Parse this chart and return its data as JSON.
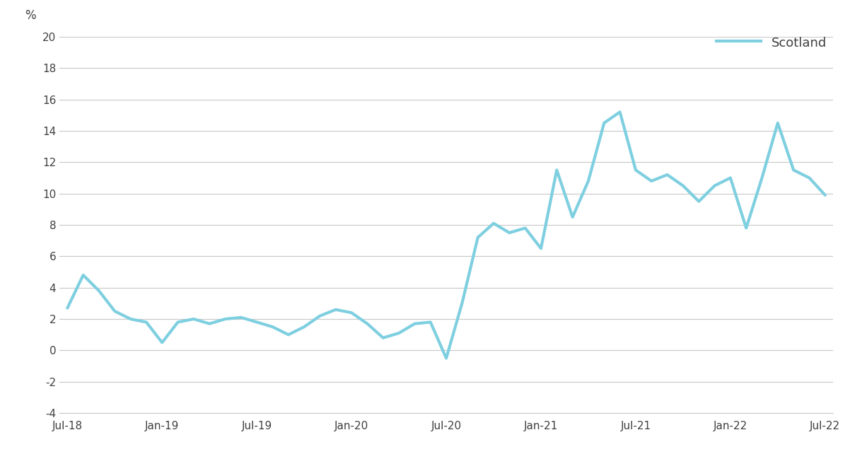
{
  "ylabel": "%",
  "line_color": "#7ECFE0",
  "line_width": 3.0,
  "legend_label": "Scotland",
  "ylim": [
    -4,
    20
  ],
  "yticks": [
    -4,
    -2,
    0,
    2,
    4,
    6,
    8,
    10,
    12,
    14,
    16,
    18,
    20
  ],
  "xtick_labels": [
    "Jul-18",
    "Jan-19",
    "Jul-19",
    "Jan-20",
    "Jul-20",
    "Jan-21",
    "Jul-21",
    "Jan-22",
    "Jul-22"
  ],
  "values": [
    2.7,
    4.8,
    3.8,
    2.5,
    2.0,
    1.8,
    0.5,
    1.8,
    2.0,
    1.7,
    2.0,
    2.1,
    1.8,
    1.5,
    1.0,
    1.5,
    2.2,
    2.6,
    2.4,
    1.7,
    0.8,
    1.1,
    1.7,
    1.8,
    -0.5,
    3.0,
    7.2,
    8.1,
    7.5,
    7.8,
    6.5,
    11.5,
    8.5,
    10.8,
    14.5,
    15.2,
    11.5,
    10.8,
    11.2,
    10.5,
    9.5,
    10.5,
    11.0,
    7.8,
    11.0,
    14.5,
    11.5,
    11.0,
    9.9
  ],
  "xtick_positions": [
    0,
    6,
    12,
    18,
    24,
    30,
    36,
    42,
    48
  ],
  "background_color": "#ffffff",
  "grid_color": "#c8c8c8",
  "text_color": "#404040"
}
